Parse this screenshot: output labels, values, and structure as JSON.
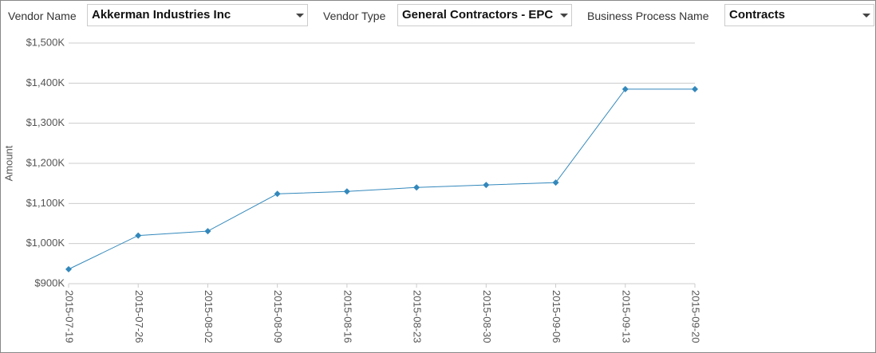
{
  "filters": [
    {
      "label": "Vendor Name",
      "value": "Akkerman Industries Inc"
    },
    {
      "label": "Vendor Type",
      "value": "General Contractors - EPC"
    },
    {
      "label": "Business Process Name",
      "value": "Contracts"
    }
  ],
  "chart_data": {
    "type": "line",
    "y_label": "Amount",
    "categories": [
      "2015-07-19",
      "2015-07-26",
      "2015-08-02",
      "2015-08-09",
      "2015-08-16",
      "2015-08-23",
      "2015-08-30",
      "2015-09-06",
      "2015-09-13",
      "2015-09-20"
    ],
    "values": [
      936,
      1020,
      1031,
      1124,
      1130,
      1140,
      1146,
      1152,
      1385,
      1385
    ],
    "color": "#3388bb",
    "ylim": [
      900,
      1500
    ],
    "yticks": [
      {
        "value": 900,
        "label": "$900K"
      },
      {
        "value": 1000,
        "label": "$1,000K"
      },
      {
        "value": 1100,
        "label": "$1,100K"
      },
      {
        "value": 1200,
        "label": "$1,200K"
      },
      {
        "value": 1300,
        "label": "$1,300K"
      },
      {
        "value": 1400,
        "label": "$1,400K"
      },
      {
        "value": 1500,
        "label": "$1,500K"
      }
    ],
    "grid": true
  }
}
